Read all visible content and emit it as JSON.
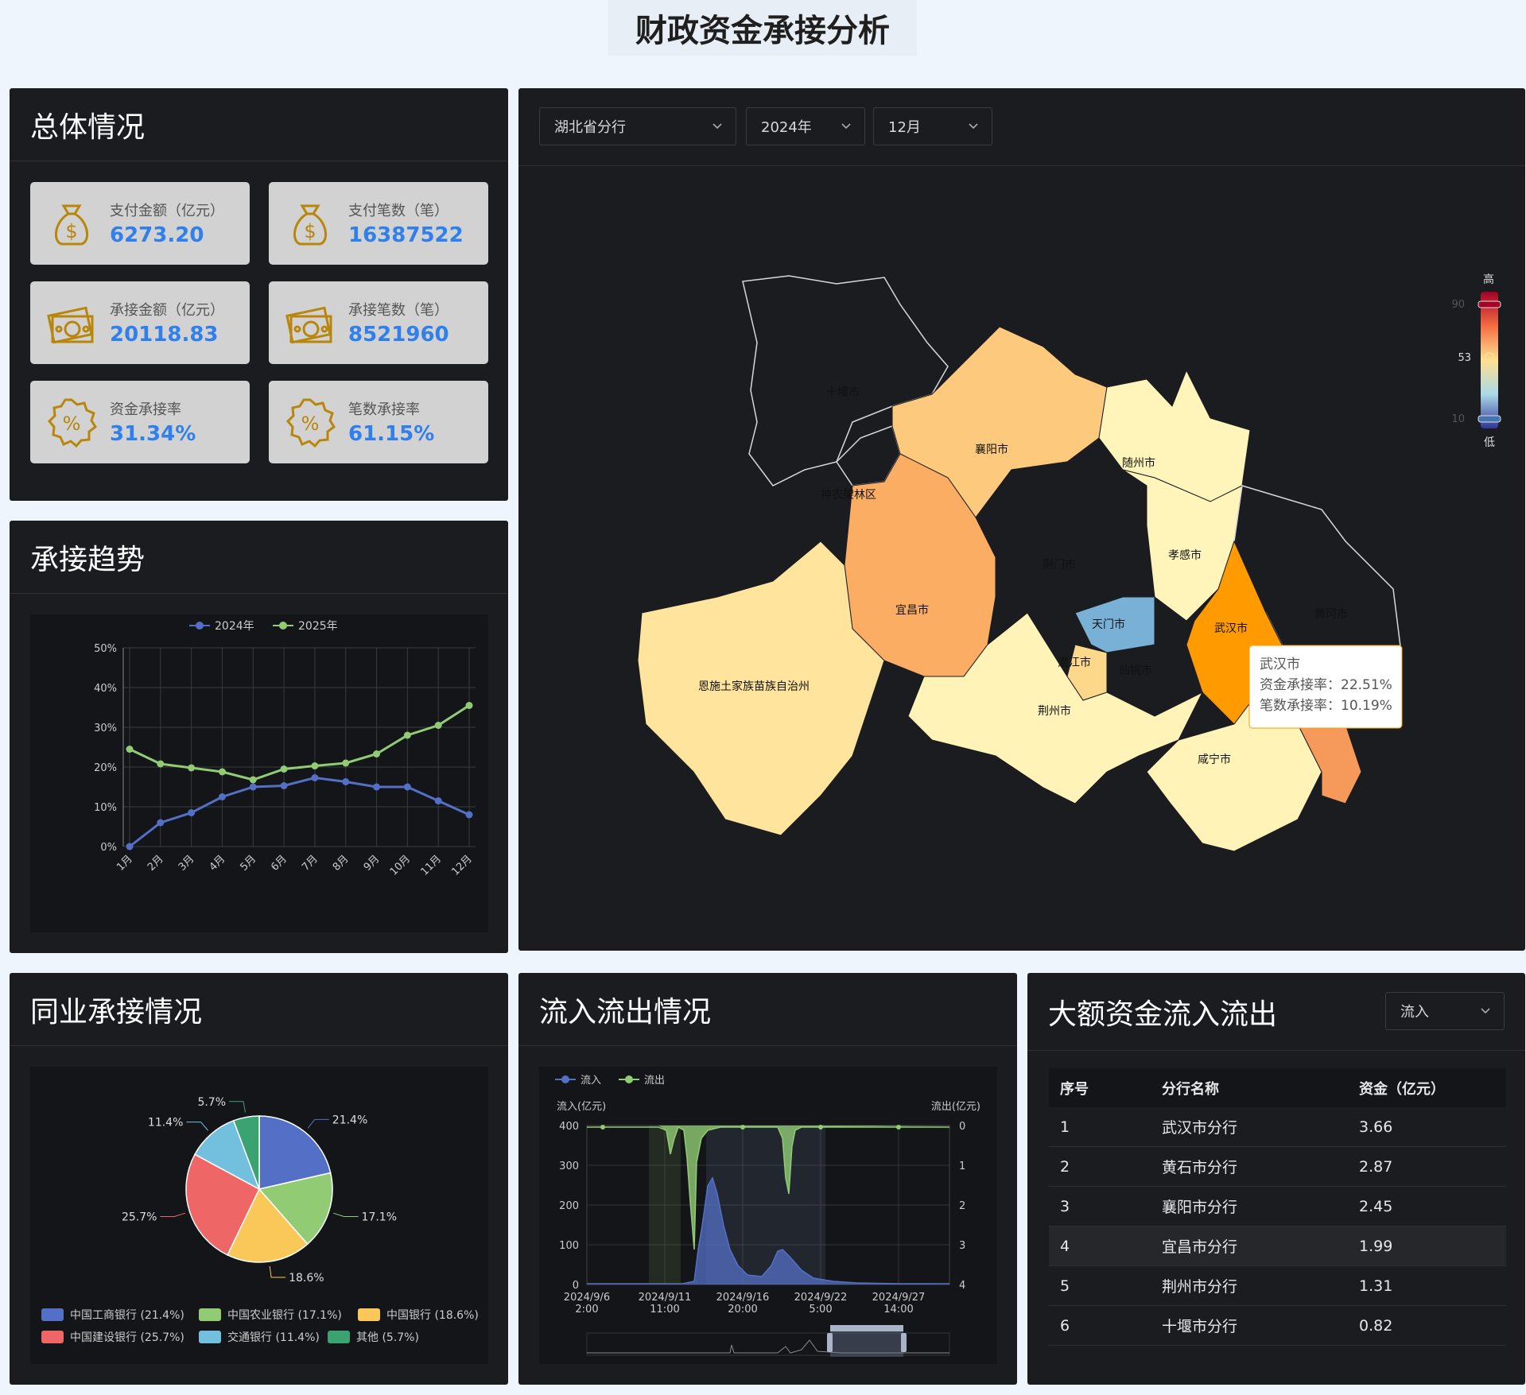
{
  "title": "财政资金承接分析",
  "overview": {
    "heading": "总体情况",
    "cards": [
      {
        "label": "支付金额（亿元）",
        "value": "6273.20",
        "icon": "money-bag-icon"
      },
      {
        "label": "支付笔数（笔）",
        "value": "16387522",
        "icon": "money-bag-icon"
      },
      {
        "label": "承接金额（亿元）",
        "value": "20118.83",
        "icon": "cash-stack-icon"
      },
      {
        "label": "承接笔数（笔）",
        "value": "8521960",
        "icon": "cash-stack-icon"
      },
      {
        "label": "资金承接率",
        "value": "31.34%",
        "icon": "percent-badge-icon"
      },
      {
        "label": "笔数承接率",
        "value": "61.15%",
        "icon": "percent-badge-icon"
      }
    ],
    "accent": "#2f80ed",
    "icon_color": "#b8860b"
  },
  "trend": {
    "heading": "承接趋势",
    "chart_data": {
      "type": "line",
      "categories": [
        "1月",
        "2月",
        "3月",
        "4月",
        "5月",
        "6月",
        "7月",
        "8月",
        "9月",
        "10月",
        "11月",
        "12月"
      ],
      "series": [
        {
          "name": "2024年",
          "color": "#5470c6",
          "values": [
            0,
            6,
            8.5,
            12.5,
            15,
            15.3,
            17.3,
            16.3,
            15,
            15,
            11.5,
            8
          ]
        },
        {
          "name": "2025年",
          "color": "#91cc75",
          "values": [
            24.5,
            20.8,
            19.8,
            18.8,
            16.8,
            19.5,
            20.3,
            21,
            23.3,
            28,
            30.5,
            35.5
          ]
        }
      ],
      "y_ticks": [
        "0%",
        "10%",
        "20%",
        "30%",
        "40%",
        "50%"
      ],
      "ylim": [
        0,
        50
      ],
      "grid": true,
      "legend": "top-center"
    }
  },
  "map": {
    "selects": {
      "branch": "湖北省分行",
      "year": "2024年",
      "month": "12月"
    },
    "legend": {
      "high": "高",
      "low": "低",
      "max": "90",
      "mid": "53",
      "min": "10"
    },
    "regions": [
      "十堰市",
      "神农架林区",
      "襄阳市",
      "随州市",
      "孝感市",
      "荆门市",
      "天门市",
      "潜江市",
      "仙桃市",
      "宜昌市",
      "恩施土家族苗族自治州",
      "武汉市",
      "黄冈市",
      "荆州市",
      "咸宁市"
    ],
    "tooltip": {
      "name": "武汉市",
      "line1": "资金承接率：22.51%",
      "line2": "笔数承接率：10.19%"
    }
  },
  "peer": {
    "heading": "同业承接情况",
    "chart_data": {
      "type": "pie",
      "slices": [
        {
          "name": "中国工商银行",
          "value": 21.4,
          "color": "#5470c6",
          "label": "21.4%",
          "legend": "中国工商银行 (21.4%)"
        },
        {
          "name": "中国农业银行",
          "value": 17.1,
          "color": "#91cc75",
          "label": "17.1%",
          "legend": "中国农业银行 (17.1%)"
        },
        {
          "name": "中国银行",
          "value": 18.6,
          "color": "#fac858",
          "label": "18.6%",
          "legend": "中国银行 (18.6%)"
        },
        {
          "name": "中国建设银行",
          "value": 25.7,
          "color": "#ee6666",
          "label": "25.7%",
          "legend": "中国建设银行 (25.7%)"
        },
        {
          "name": "交通银行",
          "value": 11.4,
          "color": "#73c0de",
          "label": "11.4%",
          "legend": "交通银行 (11.4%)"
        },
        {
          "name": "其他",
          "value": 5.7,
          "color": "#3ba272",
          "label": "5.7%",
          "legend": "其他 (5.7%)"
        }
      ]
    }
  },
  "flow": {
    "heading": "流入流出情况",
    "chart_data": {
      "type": "area",
      "legend": [
        "流入",
        "流出"
      ],
      "y_left_label": "流入(亿元)",
      "y_right_label": "流出(亿元)",
      "y_left_ticks": [
        "0",
        "100",
        "200",
        "300",
        "400"
      ],
      "y_right_ticks": [
        "0",
        "1",
        "2",
        "3",
        "4"
      ],
      "x_ticks": [
        "2024/9/6\n2:00",
        "2024/9/11\n11:00",
        "2024/9/16\n20:00",
        "2024/9/22\n5:00",
        "2024/9/27\n14:00"
      ],
      "inflow_color": "#5470c6",
      "outflow_color": "#91cc75"
    }
  },
  "large": {
    "heading": "大额资金流入流出",
    "select": "流入",
    "columns": [
      "序号",
      "分行名称",
      "资金（亿元）"
    ],
    "rows": [
      [
        "1",
        "武汉市分行",
        "3.66"
      ],
      [
        "2",
        "黄石市分行",
        "2.87"
      ],
      [
        "3",
        "襄阳市分行",
        "2.45"
      ],
      [
        "4",
        "宜昌市分行",
        "1.99"
      ],
      [
        "5",
        "荆州市分行",
        "1.31"
      ],
      [
        "6",
        "十堰市分行",
        "0.82"
      ]
    ]
  }
}
